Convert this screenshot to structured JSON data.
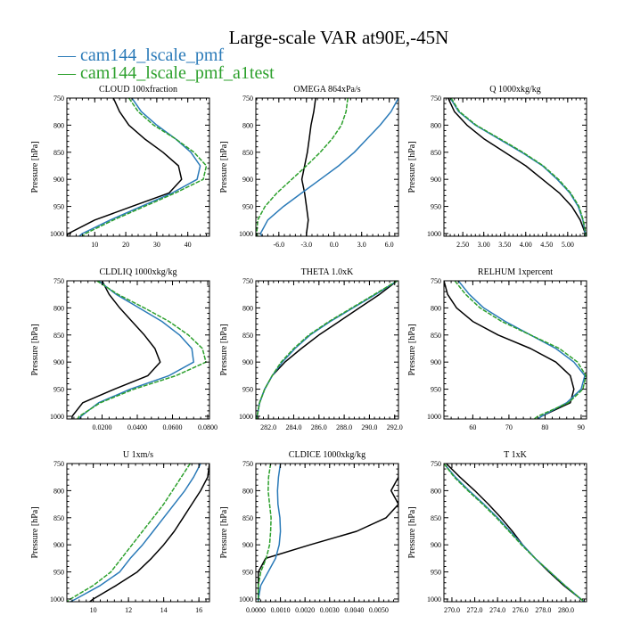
{
  "title": "Large-scale VAR at90E,-45N",
  "legend": [
    {
      "prefix": "— ",
      "label": "cam144_lscale_pmf",
      "color": "#2a7ab8"
    },
    {
      "prefix": "— ",
      "label": "cam144_lscale_pmf_a1test",
      "color": "#2ca02c"
    }
  ],
  "control_color": "#000000",
  "ylabel": "Pressure [hPa]",
  "chart_data": [
    {
      "type": "line",
      "title": "CLOUD  100xfraction",
      "xlim": [
        1,
        47
      ],
      "ylim": [
        750,
        1005
      ],
      "y_inverted": true,
      "xticks": [
        10,
        20,
        30,
        40
      ],
      "xticklabels": [
        "10",
        "20",
        "30",
        "40"
      ],
      "yticks": [
        750,
        800,
        850,
        900,
        950,
        1000
      ],
      "yticklabels": [
        "750",
        "800",
        "850",
        "900",
        "950",
        "1000"
      ],
      "pressure": [
        750,
        775,
        800,
        825,
        850,
        875,
        900,
        925,
        950,
        975,
        1000,
        1005
      ],
      "series": [
        {
          "values": [
            16,
            18,
            21,
            26,
            32,
            37,
            38,
            34,
            22,
            10,
            1.5,
            1
          ]
        },
        {
          "values": [
            22,
            25,
            30,
            36,
            41,
            44,
            43,
            35,
            25,
            15,
            6,
            5
          ]
        },
        {
          "values": [
            21,
            24,
            29,
            36,
            42,
            46,
            45,
            36,
            26,
            16,
            7,
            6
          ]
        }
      ]
    },
    {
      "type": "line",
      "title": "OMEGA  864xPa/s",
      "xlim": [
        -8.5,
        7
      ],
      "ylim": [
        750,
        1005
      ],
      "y_inverted": true,
      "xticks": [
        -6,
        -3,
        0,
        3,
        6
      ],
      "xticklabels": [
        "-6.0",
        "-3.0",
        "0.0",
        "3.0",
        "6.0"
      ],
      "yticks": [
        750,
        800,
        850,
        900,
        950,
        1000
      ],
      "yticklabels": [
        "750",
        "800",
        "850",
        "900",
        "950",
        "1000"
      ],
      "pressure": [
        750,
        775,
        800,
        825,
        850,
        875,
        900,
        925,
        950,
        975,
        1000,
        1005
      ],
      "series": [
        {
          "values": [
            -2.0,
            -2.2,
            -2.5,
            -2.7,
            -2.9,
            -3.2,
            -3.5,
            -3.2,
            -3.0,
            -2.8,
            -3.0,
            -3.0
          ]
        },
        {
          "values": [
            7.0,
            6.2,
            5.0,
            3.6,
            2.2,
            0.5,
            -1.5,
            -3.5,
            -5.5,
            -7.2,
            -8.0,
            -7.8
          ]
        },
        {
          "values": [
            1.5,
            1.3,
            0.8,
            -0.2,
            -1.5,
            -3.0,
            -4.6,
            -6.2,
            -7.5,
            -8.3,
            -8.4,
            -8.3
          ]
        }
      ]
    },
    {
      "type": "line",
      "title": "Q  1000xkg/kg",
      "xlim": [
        2.05,
        5.45
      ],
      "ylim": [
        750,
        1005
      ],
      "y_inverted": true,
      "xticks": [
        2.5,
        3.0,
        3.5,
        4.0,
        4.5,
        5.0
      ],
      "xticklabels": [
        "2.50",
        "3.00",
        "3.50",
        "4.00",
        "4.50",
        "5.00"
      ],
      "yticks": [
        750,
        800,
        850,
        900,
        950,
        1000
      ],
      "yticklabels": [
        "750",
        "800",
        "850",
        "900",
        "950",
        "1000"
      ],
      "pressure": [
        750,
        775,
        800,
        825,
        850,
        875,
        900,
        925,
        950,
        975,
        1000,
        1005
      ],
      "series": [
        {
          "values": [
            2.15,
            2.3,
            2.6,
            3.0,
            3.5,
            4.0,
            4.4,
            4.8,
            5.1,
            5.3,
            5.42,
            5.43
          ]
        },
        {
          "values": [
            2.2,
            2.4,
            2.8,
            3.35,
            3.9,
            4.4,
            4.75,
            5.05,
            5.25,
            5.36,
            5.42,
            5.43
          ]
        },
        {
          "values": [
            2.22,
            2.42,
            2.82,
            3.38,
            3.93,
            4.42,
            4.78,
            5.07,
            5.27,
            5.37,
            5.43,
            5.44
          ]
        }
      ]
    },
    {
      "type": "line",
      "title": "CLDLIQ  1000xkg/kg",
      "xlim": [
        0,
        0.081
      ],
      "ylim": [
        750,
        1005
      ],
      "y_inverted": true,
      "xticks": [
        0.02,
        0.04,
        0.06,
        0.08
      ],
      "xticklabels": [
        "0.0200",
        "0.0400",
        "0.0600",
        "0.0800"
      ],
      "yticks": [
        750,
        800,
        850,
        900,
        950,
        1000
      ],
      "yticklabels": [
        "750",
        "800",
        "850",
        "900",
        "950",
        "1000"
      ],
      "pressure": [
        750,
        775,
        800,
        825,
        850,
        875,
        900,
        925,
        950,
        975,
        1000,
        1005
      ],
      "series": [
        {
          "values": [
            0.02,
            0.024,
            0.03,
            0.037,
            0.044,
            0.05,
            0.053,
            0.046,
            0.027,
            0.009,
            0.003,
            0.003
          ]
        },
        {
          "values": [
            0.018,
            0.028,
            0.041,
            0.054,
            0.064,
            0.071,
            0.072,
            0.058,
            0.036,
            0.018,
            0.008,
            0.007
          ]
        },
        {
          "values": [
            0.017,
            0.029,
            0.044,
            0.058,
            0.069,
            0.077,
            0.079,
            0.062,
            0.038,
            0.019,
            0.007,
            0.006
          ]
        }
      ]
    },
    {
      "type": "line",
      "title": "THETA  1.0xK",
      "xlim": [
        281,
        292.3
      ],
      "ylim": [
        750,
        1005
      ],
      "y_inverted": true,
      "xticks": [
        282,
        284,
        286,
        288,
        290,
        292
      ],
      "xticklabels": [
        "282.0",
        "284.0",
        "286.0",
        "288.0",
        "290.0",
        "292.0"
      ],
      "yticks": [
        750,
        800,
        850,
        900,
        950,
        1000
      ],
      "yticklabels": [
        "750",
        "800",
        "850",
        "900",
        "950",
        "1000"
      ],
      "pressure": [
        750,
        775,
        800,
        825,
        850,
        875,
        900,
        925,
        950,
        975,
        1000,
        1005
      ],
      "series": [
        {
          "values": [
            292.2,
            290.8,
            289.2,
            287.6,
            286.0,
            284.6,
            283.3,
            282.3,
            281.7,
            281.3,
            281.1,
            281.1
          ]
        },
        {
          "values": [
            292.2,
            290.5,
            288.7,
            286.9,
            285.3,
            284.1,
            283.1,
            282.3,
            281.7,
            281.3,
            281.1,
            281.1
          ]
        },
        {
          "values": [
            292.2,
            290.4,
            288.6,
            286.8,
            285.2,
            284.0,
            283.0,
            282.3,
            281.7,
            281.3,
            281.1,
            281.1
          ]
        }
      ]
    },
    {
      "type": "line",
      "title": "RELHUM  1xpercent",
      "xlim": [
        52,
        91.5
      ],
      "ylim": [
        750,
        1005
      ],
      "y_inverted": true,
      "xticks": [
        60,
        70,
        80,
        90
      ],
      "xticklabels": [
        "60",
        "70",
        "80",
        "90"
      ],
      "yticks": [
        750,
        800,
        850,
        900,
        950,
        1000
      ],
      "yticklabels": [
        "750",
        "800",
        "850",
        "900",
        "950",
        "1000"
      ],
      "pressure": [
        750,
        775,
        800,
        825,
        850,
        875,
        900,
        925,
        950,
        975,
        1000,
        1005
      ],
      "series": [
        {
          "values": [
            52,
            53,
            55.5,
            60,
            67,
            76,
            83,
            87,
            88,
            87,
            79,
            78
          ]
        },
        {
          "values": [
            56,
            59,
            63,
            69,
            76,
            83,
            88,
            91,
            90,
            86,
            79,
            78
          ]
        },
        {
          "values": [
            55,
            58,
            62,
            68,
            76,
            84,
            89,
            91.3,
            90.5,
            86.5,
            78,
            77
          ]
        }
      ]
    },
    {
      "type": "line",
      "title": "U  1xm/s",
      "xlim": [
        8.5,
        16.6
      ],
      "ylim": [
        750,
        1005
      ],
      "y_inverted": true,
      "xticks": [
        10,
        12,
        14,
        16
      ],
      "xticklabels": [
        "10",
        "12",
        "14",
        "16"
      ],
      "yticks": [
        750,
        800,
        850,
        900,
        950,
        1000
      ],
      "yticklabels": [
        "750",
        "800",
        "850",
        "900",
        "950",
        "1000"
      ],
      "pressure": [
        750,
        775,
        800,
        825,
        850,
        875,
        900,
        925,
        950,
        975,
        1000,
        1005
      ],
      "series": [
        {
          "values": [
            16.6,
            16.5,
            16.1,
            15.6,
            15.1,
            14.6,
            14.0,
            13.3,
            12.5,
            11.3,
            10.0,
            9.8
          ]
        },
        {
          "values": [
            16.1,
            15.7,
            15.2,
            14.6,
            14.0,
            13.4,
            12.8,
            12.1,
            11.5,
            10.4,
            9.0,
            8.7
          ]
        },
        {
          "values": [
            15.5,
            15.0,
            14.5,
            14.0,
            13.4,
            12.8,
            12.2,
            11.6,
            11.0,
            10.0,
            8.7,
            8.5
          ]
        }
      ]
    },
    {
      "type": "line",
      "title": "CLDICE  1000xkg/kg",
      "xlim": [
        0,
        0.0058
      ],
      "ylim": [
        750,
        1005
      ],
      "y_inverted": true,
      "xticks": [
        0,
        0.001,
        0.002,
        0.003,
        0.004,
        0.005
      ],
      "xticklabels": [
        "0.0000",
        "0.0010",
        "0.0020",
        "0.0030",
        "0.0040",
        "0.0050"
      ],
      "yticks": [
        750,
        800,
        850,
        900,
        950,
        1000
      ],
      "yticklabels": [
        "750",
        "800",
        "850",
        "900",
        "950",
        "1000"
      ],
      "pressure": [
        750,
        775,
        800,
        825,
        850,
        875,
        900,
        925,
        950,
        975,
        1000,
        1005
      ],
      "series": [
        {
          "values": [
            0.0058,
            0.0058,
            0.0055,
            0.0058,
            0.0053,
            0.0041,
            0.0022,
            0.0004,
            0.0001,
            0.0001,
            0.0001,
            0.0001
          ]
        },
        {
          "values": [
            0.001,
            0.00092,
            0.00088,
            0.0009,
            0.00098,
            0.001,
            0.00095,
            0.0008,
            0.0005,
            0.0002,
            0.0001,
            0.0001
          ]
        },
        {
          "values": [
            0.0006,
            0.00052,
            0.0005,
            0.00056,
            0.00062,
            0.0006,
            0.00056,
            0.00042,
            0.0002,
            0.0001,
            0.0001,
            0.0001
          ]
        }
      ]
    },
    {
      "type": "line",
      "title": "T  1xK",
      "xlim": [
        269.3,
        281.8
      ],
      "ylim": [
        750,
        1005
      ],
      "y_inverted": true,
      "xticks": [
        270,
        272,
        274,
        276,
        278,
        280
      ],
      "xticklabels": [
        "270.0",
        "272.0",
        "274.0",
        "276.0",
        "278.0",
        "280.0"
      ],
      "yticks": [
        750,
        800,
        850,
        900,
        950,
        1000
      ],
      "yticklabels": [
        "750",
        "800",
        "850",
        "900",
        "950",
        "1000"
      ],
      "pressure": [
        750,
        775,
        800,
        825,
        850,
        875,
        900,
        925,
        950,
        975,
        1000,
        1005
      ],
      "series": [
        {
          "values": [
            269.5,
            270.7,
            272.0,
            273.2,
            274.3,
            275.3,
            276.2,
            277.3,
            278.5,
            279.8,
            281.3,
            281.6
          ]
        },
        {
          "values": [
            269.3,
            270.3,
            271.5,
            272.8,
            274.0,
            275.1,
            276.2,
            277.3,
            278.6,
            279.9,
            281.3,
            281.6
          ]
        },
        {
          "values": [
            269.3,
            270.2,
            271.4,
            272.7,
            273.9,
            275.0,
            276.1,
            277.3,
            278.6,
            279.9,
            281.3,
            281.6
          ]
        }
      ]
    }
  ]
}
